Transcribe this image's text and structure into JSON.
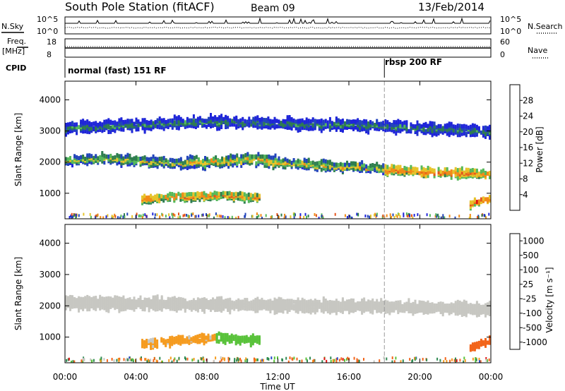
{
  "header": {
    "station": "South Pole Station (fitACF)",
    "beam": "Beam 09",
    "date": "13/Feb/2014"
  },
  "colors": {
    "power_scale": [
      "#1f25d9",
      "#2244bb",
      "#2e7d4f",
      "#55b95a",
      "#e6c42a",
      "#f28a16",
      "#e4541c",
      "#dd0f0f"
    ],
    "velocity_scale": [
      "#e31414",
      "#f2641a",
      "#f59b1f",
      "#c7c7c2",
      "#c7c7c2",
      "#59c23a",
      "#2f8a52",
      "#2546c8"
    ],
    "ground_scatter": "#c7c7c2"
  },
  "panels": {
    "nsky": {
      "left_label": "N.Sky",
      "right_label": "N.Search",
      "left_ticks": [
        "10^5",
        "10^0"
      ],
      "right_ticks": [
        "10^5",
        "10^0"
      ]
    },
    "freq": {
      "left_label_line1": "Freq.",
      "left_label_line2": "[MHz]",
      "right_label": "Nave",
      "left_ticks": [
        "18",
        "8"
      ],
      "right_ticks": [
        "60",
        "0"
      ]
    },
    "cpid": {
      "label": "CPID",
      "programs": [
        {
          "name": "normal (fast) 151 RF",
          "start_hour": 0
        },
        {
          "name": "rbsp 200 RF",
          "start_hour": 18
        }
      ]
    },
    "power": {
      "ylabel": "Slant Range [km]",
      "colorbar_label": "Power [dB]",
      "colorbar_ticks": [
        "4",
        "8",
        "12",
        "16",
        "20",
        "24",
        "28"
      ]
    },
    "velocity": {
      "ylabel": "Slant Range [km]",
      "colorbar_label": "Velocity [m s⁻¹]",
      "colorbar_ticks": [
        "1000",
        "500",
        "100",
        "25",
        "-25",
        "-100",
        "-500",
        "-1000"
      ]
    }
  },
  "chart_data": {
    "type": "heatmap",
    "x_axis": {
      "label": "Time UT",
      "range_hours": [
        0,
        24
      ],
      "ticks": [
        "00:00",
        "04:00",
        "08:00",
        "12:00",
        "16:00",
        "20:00",
        "00:00"
      ]
    },
    "y_axis": {
      "label": "Slant Range [km]",
      "range_km": [
        180,
        4600
      ],
      "ticks": [
        1000,
        2000,
        3000,
        4000
      ]
    },
    "program_change_hour": 18,
    "scatter_bands": [
      {
        "start_hour": 0.0,
        "end_hour": 7.0,
        "center_km": [
          2050,
          2120,
          2020,
          1950
        ],
        "width_km": 260,
        "power_db": 12
      },
      {
        "start_hour": 7.0,
        "end_hour": 12.0,
        "center_km": [
          2000,
          2020,
          2100,
          2000
        ],
        "width_km": 280,
        "power_db": 14
      },
      {
        "start_hour": 12.0,
        "end_hour": 18.0,
        "center_km": [
          1980,
          1900,
          1850,
          1800
        ],
        "width_km": 240,
        "power_db": 13
      },
      {
        "start_hour": 18.0,
        "end_hour": 24.0,
        "center_km": [
          1750,
          1700,
          1650,
          1620
        ],
        "width_km": 220,
        "power_db": 20
      },
      {
        "start_hour": 4.3,
        "end_hour": 11.0,
        "center_km": [
          800,
          900,
          950,
          850
        ],
        "width_km": 200,
        "power_db": 18
      },
      {
        "start_hour": 0.0,
        "end_hour": 24.0,
        "center_km": [
          3100,
          3300,
          3200,
          3000
        ],
        "width_km": 300,
        "power_db": 6
      },
      {
        "start_hour": 22.8,
        "end_hour": 24.0,
        "center_km": [
          650,
          750,
          800
        ],
        "width_km": 180,
        "power_db": 22
      }
    ],
    "velocity_bands": [
      {
        "start_hour": 0.0,
        "end_hour": 24.0,
        "center_km": [
          2100,
          2050,
          2000,
          1900
        ],
        "width_km": 320,
        "velocity_ms": 0
      },
      {
        "start_hour": 4.3,
        "end_hour": 8.5,
        "center_km": [
          800,
          900,
          1000
        ],
        "width_km": 220,
        "velocity_ms": -150
      },
      {
        "start_hour": 8.5,
        "end_hour": 11.0,
        "center_km": [
          1000,
          950,
          900
        ],
        "width_km": 220,
        "velocity_ms": 200
      },
      {
        "start_hour": 22.8,
        "end_hour": 24.0,
        "center_km": [
          650,
          800,
          900
        ],
        "width_km": 200,
        "velocity_ms": -500
      }
    ]
  }
}
